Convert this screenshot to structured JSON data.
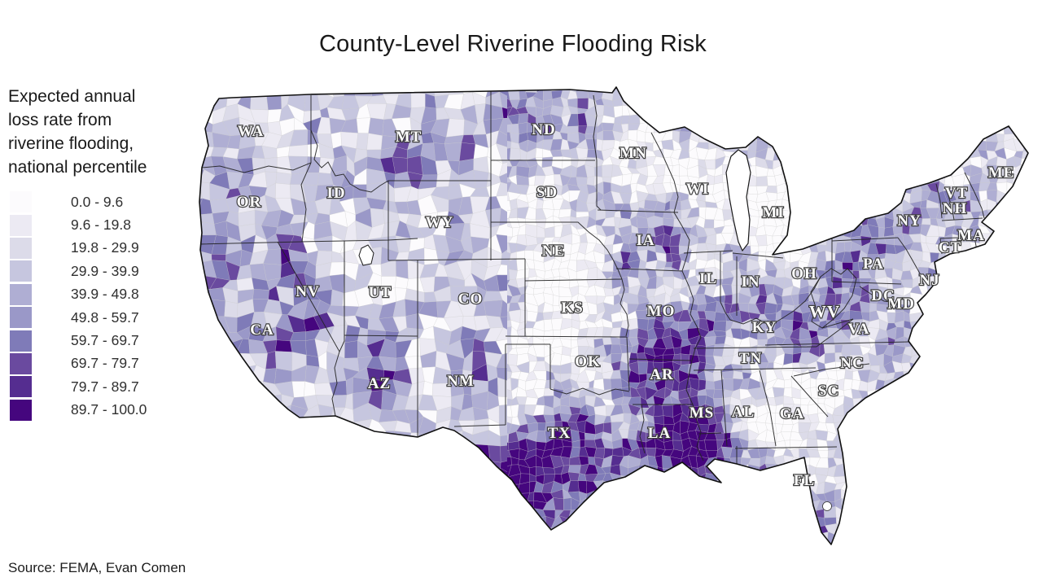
{
  "title": "County-Level Riverine Flooding Risk",
  "legend": {
    "title": "Expected annual\nloss rate from\nriverine flooding,\nnational percentile",
    "classes": [
      {
        "label": "0.0 - 9.6",
        "color": "#fcfbfd"
      },
      {
        "label": "9.6 - 19.8",
        "color": "#eceaf3"
      },
      {
        "label": "19.8 - 29.9",
        "color": "#dcdbe9"
      },
      {
        "label": "29.9 - 39.9",
        "color": "#c6c6df"
      },
      {
        "label": "39.9 - 49.8",
        "color": "#afaed3"
      },
      {
        "label": "49.8 - 59.7",
        "color": "#9a98c8"
      },
      {
        "label": "59.7 - 69.7",
        "color": "#7f7bb8"
      },
      {
        "label": "69.7 - 79.7",
        "color": "#6a4a9f"
      },
      {
        "label": "79.7 - 89.7",
        "color": "#552d90"
      },
      {
        "label": "89.7 - 100.0",
        "color": "#45067e"
      }
    ]
  },
  "map": {
    "description": "Choropleth of the contiguous United States shaded by county",
    "state_labels": [
      "WA",
      "OR",
      "CA",
      "NV",
      "ID",
      "UT",
      "AZ",
      "MT",
      "WY",
      "CO",
      "NM",
      "ND",
      "SD",
      "NE",
      "KS",
      "OK",
      "TX",
      "MN",
      "IA",
      "MO",
      "AR",
      "LA",
      "WI",
      "IL",
      "MI",
      "IN",
      "OH",
      "KY",
      "TN",
      "MS",
      "AL",
      "GA",
      "FL",
      "SC",
      "NC",
      "VA",
      "WV",
      "PA",
      "NY",
      "NJ",
      "DC",
      "MD",
      "VT",
      "NH",
      "MA",
      "CT",
      "ME"
    ]
  },
  "source": "Source: FEMA, Evan Comen"
}
